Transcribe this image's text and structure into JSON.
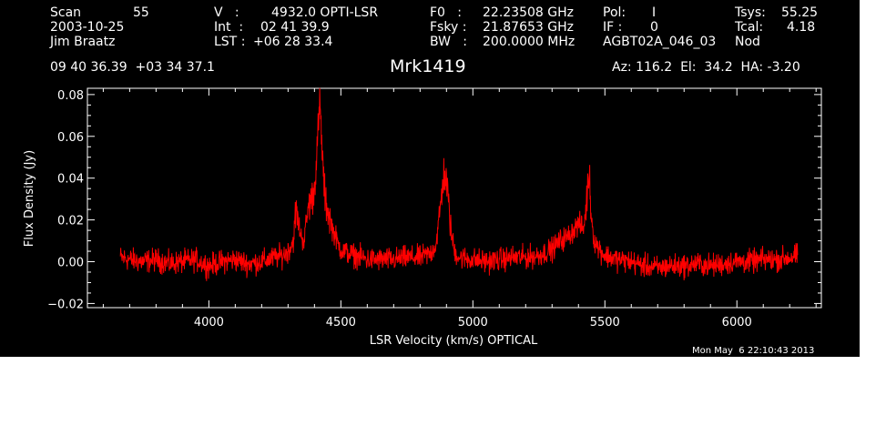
{
  "header": {
    "scan_label": "Scan",
    "scan_value": "55",
    "date": "2003-10-25",
    "observer": "Jim Braatz",
    "v_label": "V   :",
    "v_value": "4932.0 OPTI-LSR",
    "int_label": "Int  :",
    "int_value": "02 41 39.9",
    "lst_label": "LST :",
    "lst_value": "+06 28 33.4",
    "f0_label": "F0   :",
    "f0_value": "22.23508 GHz",
    "fsky_label": "Fsky :",
    "fsky_value": "21.87653 GHz",
    "bw_label": "BW   :",
    "bw_value": "200.0000 MHz",
    "pol_label": "Pol:",
    "pol_value": "I",
    "if_label": "IF :",
    "if_value": "0",
    "project": "AGBT02A_046_03",
    "tsys_label": "Tsys:",
    "tsys_value": "55.25",
    "tcal_label": "Tcal:",
    "tcal_value": "4.18",
    "mode": "Nod",
    "coords": "09 40 36.39  +03 34 37.1",
    "source": "Mrk1419",
    "az_el_ha": "Az: 116.2  El:  34.2  HA: -3.20"
  },
  "timestamp": "Mon May  6 22:10:43 2013",
  "colors": {
    "background": "#000000",
    "foreground": "#ffffff",
    "trace": "#ff0000"
  },
  "chart_data": {
    "type": "line",
    "title": "Mrk1419",
    "xlabel": "LSR Velocity (km/s) OPTICAL",
    "ylabel": "Flux Density (Jy)",
    "xlim": [
      3540,
      6320
    ],
    "ylim": [
      -0.022,
      0.083
    ],
    "xticks": [
      4000,
      4500,
      5000,
      5500,
      6000
    ],
    "xtick_labels": [
      "4000",
      "4500",
      "5000",
      "5500",
      "6000"
    ],
    "yticks": [
      -0.02,
      0.0,
      0.02,
      0.04,
      0.06,
      0.08
    ],
    "ytick_labels": [
      "−0.02",
      "0.00",
      "0.02",
      "0.04",
      "0.06",
      "0.08"
    ],
    "grid": false,
    "series": [
      {
        "x": [
          3665,
          3700,
          3750,
          3800,
          3850,
          3900,
          3950,
          4000,
          4050,
          4100,
          4150,
          4200,
          4250,
          4280,
          4300,
          4320,
          4330,
          4340,
          4350,
          4360,
          4370,
          4380,
          4390,
          4400,
          4410,
          4420,
          4425,
          4430,
          4435,
          4440,
          4450,
          4460,
          4470,
          4480,
          4490,
          4500,
          4510,
          4530,
          4550,
          4580,
          4600,
          4650,
          4700,
          4750,
          4800,
          4840,
          4860,
          4870,
          4880,
          4890,
          4900,
          4910,
          4920,
          4930,
          4950,
          5000,
          5050,
          5100,
          5150,
          5200,
          5250,
          5300,
          5330,
          5360,
          5380,
          5400,
          5420,
          5430,
          5440,
          5450,
          5460,
          5480,
          5500,
          5550,
          5600,
          5650,
          5700,
          5750,
          5800,
          5850,
          5900,
          5950,
          6000,
          6050,
          6100,
          6150,
          6200,
          6230
        ],
        "y": [
          0.002,
          0.001,
          0.0,
          0.001,
          -0.001,
          0.0,
          0.001,
          -0.002,
          0.0,
          0.001,
          -0.001,
          0.0,
          0.002,
          0.003,
          0.005,
          0.01,
          0.025,
          0.018,
          0.012,
          0.01,
          0.02,
          0.028,
          0.03,
          0.035,
          0.055,
          0.075,
          0.065,
          0.05,
          0.04,
          0.03,
          0.025,
          0.02,
          0.015,
          0.012,
          0.008,
          0.006,
          0.005,
          0.004,
          0.003,
          0.002,
          0.001,
          0.001,
          0.001,
          0.002,
          0.002,
          0.004,
          0.008,
          0.018,
          0.03,
          0.042,
          0.038,
          0.025,
          0.012,
          0.005,
          0.002,
          0.001,
          0.0,
          0.001,
          0.002,
          0.002,
          0.003,
          0.006,
          0.01,
          0.012,
          0.015,
          0.018,
          0.016,
          0.028,
          0.043,
          0.02,
          0.01,
          0.006,
          0.003,
          0.001,
          0.0,
          -0.002,
          -0.003,
          -0.002,
          -0.002,
          -0.001,
          -0.002,
          -0.001,
          0.0,
          0.0,
          0.001,
          0.001,
          0.002,
          0.003
        ]
      }
    ]
  }
}
